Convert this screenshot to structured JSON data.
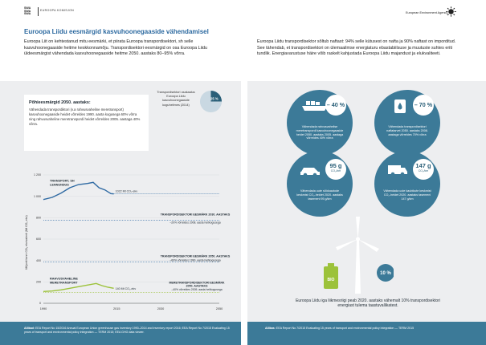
{
  "header": {
    "eu_logo": "SWA\nSWA\nSWA",
    "eu_label": "EUROOPA KOMISJON",
    "eea_label": "European Environment Agency"
  },
  "title": "Euroopa Liidu eesmärgid kasvuhoonegaaside vähendamisel",
  "intro_left": "Euroopa Liit on kehtestanud mitu eesmärki, et piirata Euroopa transpordisektori, sh selle kasvuhoonegaaside heitme keskkonnamõju. Transpordisektori eesmärgid on osa Euroopa Liidu üldeesmärgist vähendada kasvuhoonegaaside heitme 2050. aastaks 80–95% võrra.",
  "intro_right": "Euroopa Liidu transpordisektor sõltub naftast: 94% selle kütusest on nafta ja 90% naftast on imporditud. See tähendab, et transpordisektori on ülemaailmse energiaturu ebastabiilsuse ja muutuste suhtes eriti tundlik. Energiavarustuse häire võib raskelt kahjustada Euroopa Liidu majandust ja elukvaliteeti.",
  "target_card": {
    "title": "Põhieesmärgid 2050. aastaks:",
    "text": "Vähendada transpordiktori (v.a rahvusvaheline meretransport) kasvuhoonegaaside heidet võrreldes 1990. aasta kogusega 60% võrra ning rahvusvaheline meretranspordi heidet võrreldes 2005. aastaga 40% võrra."
  },
  "share": {
    "label": "Transpordisektori osakaalus Euroopa Liidu kasvuhoonegaaside koguheitmes (2014)",
    "value_label": "25 %",
    "fraction": 0.25
  },
  "chart_data": {
    "type": "line",
    "ylabel": "Miljonit tonni CO₂ ekvivalenti (Mt CO₂ ekv)",
    "x_ticks": [
      "1990",
      "2015",
      "2030",
      "2050"
    ],
    "y_ticks": [
      "0",
      "200",
      "400",
      "600",
      "800",
      "1 000",
      "1 200"
    ],
    "xlim": [
      1990,
      2050
    ],
    "ylim": [
      0,
      1200
    ],
    "series": [
      {
        "name": "TRANSPORT, SH LENNUNDUS",
        "x": [
          1990,
          1993,
          1996,
          1999,
          2002,
          2005,
          2007,
          2009,
          2011,
          2013,
          2014
        ],
        "values": [
          970,
          990,
          1030,
          1080,
          1110,
          1120,
          1130,
          1080,
          1060,
          1025,
          1022
        ]
      },
      {
        "name": "RAHVUSVAHELINE MERETRANSPORT",
        "x": [
          1990,
          1993,
          1996,
          1999,
          2002,
          2005,
          2008,
          2010,
          2012,
          2014
        ],
        "values": [
          110,
          115,
          125,
          140,
          155,
          170,
          185,
          165,
          150,
          140
        ]
      }
    ],
    "annotations": {
      "transport_value": "1022 Mt CO₂-ekv",
      "maritime_value": "140 Mt CO₂-ekv",
      "target_2030_title": "TRANSPORDISEKTORI EESMÄRK 2030. AASTAKS",
      "target_2030_text": "–20% võrreldes 2008. aasta heitkogusega",
      "target_2050_title": "TRANSPORDISEKTORI EESMÄRK 2050. AASTAKS",
      "target_2050_text": "–60% võrreldes 1990. aasta heitkogusega",
      "maritime_target_title": "MERETRANSPORDISEKTORI EESMÄRK 2050. AASTAKS",
      "maritime_target_text": "–40% võrreldes 2005. aasta heitkogusega"
    },
    "targets": {
      "t2030": 775,
      "t2050": 388,
      "maritime_2050": 102
    }
  },
  "bubbles": [
    {
      "pct": "– 40 %",
      "caption": "Vähendada rahvusvahelise meretranspordi kasvuhoonegaaside heidet 2050. aastaks 2005. aastaga võrreldes 40% võrra"
    },
    {
      "pct": "– 70 %",
      "caption": "Vähendada transpordisektori naftatarvet 2050. aastaks 2008. aastaga võrreldes 70% võrra"
    },
    {
      "num": "95 g",
      "unit": "CO₂/km",
      "caption": "Vähendada uute sõiduautode keskmist CO₂-heidet 2020. aastaks tasemeni 95 g/km"
    },
    {
      "num": "147 g",
      "unit": "CO₂/km",
      "caption": "Vähendada uute kaubikute keskmist CO₂-heidet 2020. aastaks tasemeni 147 g/km"
    }
  ],
  "renewable": {
    "pct": "10 %",
    "bio_label": "BIO",
    "caption": "Euroopa Liidu iga liikmesriigi peab 2020. aastaks vähemalt 10% transpordisektori energiast tulema taastuvallikatest."
  },
  "footer_left": {
    "label": "Allikad:",
    "text": "EEA Report No 15/2016 Annual European Union greenhouse gas inventory 1990–2014 and inventory report 2016; EEA Report No 7/2015 Evaluating 15 years of transport and environmental policy integration — TERM 2015; EEA GHG data viewer."
  },
  "footer_right": {
    "label": "Allikas:",
    "text": "EEA Report No 7/2015 Evaluating 15 years of transport and environmental policy integration — TERM 2015"
  },
  "colors": {
    "accent": "#3c7a98",
    "title": "#2d6aa0",
    "transport_line": "#2f6aa3",
    "maritime_line": "#9cc23a",
    "panel": "#edeef0"
  }
}
